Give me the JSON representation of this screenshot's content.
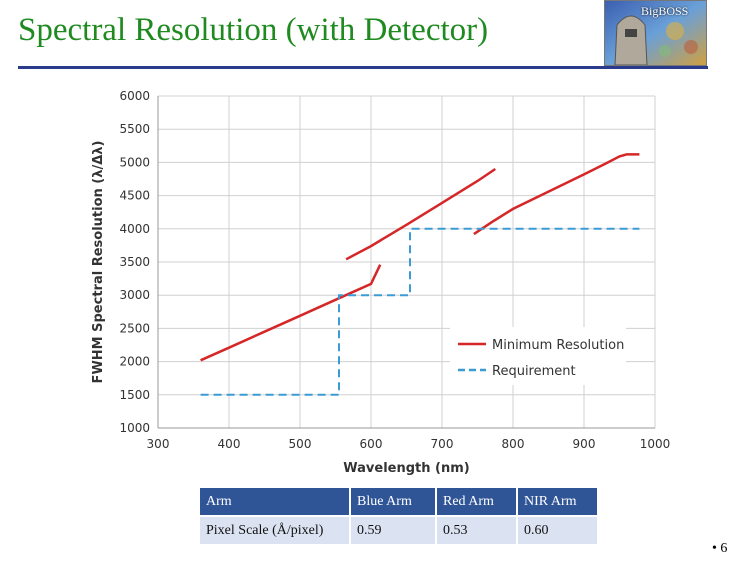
{
  "slide": {
    "title": "Spectral Resolution (with Detector)",
    "page_number": "• 6",
    "logo_text": "BigBOSS"
  },
  "chart_data": {
    "type": "line",
    "title": "",
    "xlabel": "Wavelength (nm)",
    "ylabel": "FWHM Spectral Resolution (λ/Δλ)",
    "xlim": [
      300,
      1000
    ],
    "ylim": [
      1000,
      6000
    ],
    "xticks": [
      300,
      400,
      500,
      600,
      700,
      800,
      900,
      1000
    ],
    "yticks": [
      1000,
      1500,
      2000,
      2500,
      3000,
      3500,
      4000,
      4500,
      5000,
      5500,
      6000
    ],
    "grid": true,
    "legend_position": "lower-right",
    "series": [
      {
        "name": "Minimum Resolution",
        "color": "#d62728",
        "style": "solid",
        "segments": [
          [
            [
              360,
              2020
            ],
            [
              400,
              2210
            ],
            [
              450,
              2450
            ],
            [
              500,
              2690
            ],
            [
              550,
              2930
            ],
            [
              600,
              3170
            ],
            [
              613,
              3460
            ]
          ],
          [
            [
              565,
              3540
            ],
            [
              600,
              3740
            ],
            [
              650,
              4060
            ],
            [
              700,
              4390
            ],
            [
              750,
              4720
            ],
            [
              775,
              4900
            ]
          ],
          [
            [
              745,
              3920
            ],
            [
              770,
              4100
            ],
            [
              800,
              4300
            ],
            [
              850,
              4560
            ],
            [
              900,
              4820
            ],
            [
              930,
              4980
            ],
            [
              950,
              5090
            ],
            [
              960,
              5120
            ],
            [
              978,
              5120
            ]
          ]
        ]
      },
      {
        "name": "Requirement",
        "color": "#3a9bd5",
        "style": "dashed",
        "segments": [
          [
            [
              360,
              1500
            ],
            [
              555,
              1500
            ],
            [
              555,
              3000
            ],
            [
              655,
              3000
            ],
            [
              655,
              4000
            ],
            [
              978,
              4000
            ]
          ]
        ]
      }
    ]
  },
  "table": {
    "headers": [
      "Arm",
      "Blue Arm",
      "Red Arm",
      "NIR Arm"
    ],
    "rows": [
      [
        "Pixel Scale (Å/pixel)",
        "0.59",
        "0.53",
        "0.60"
      ]
    ]
  }
}
